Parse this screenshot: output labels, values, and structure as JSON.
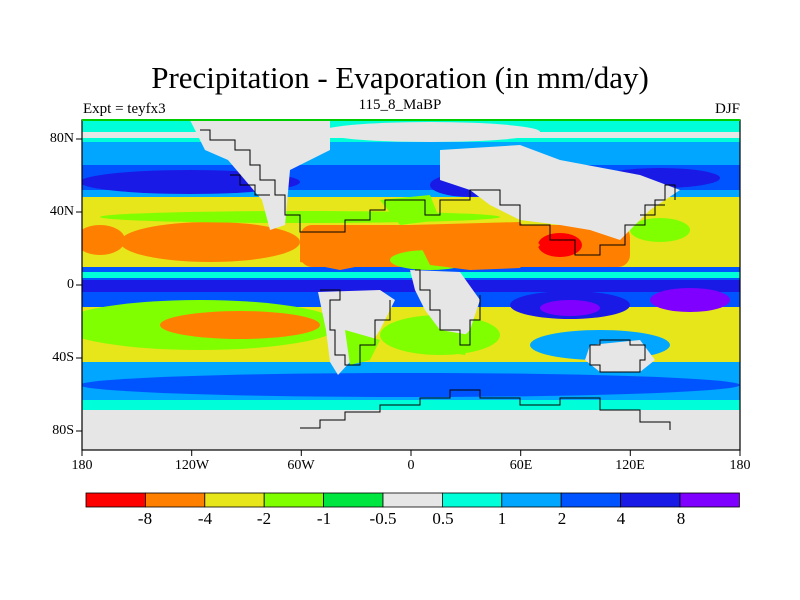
{
  "title": "Precipitation - Evaporation (in mm/day)",
  "subtitle_left": "Expt = teyfx3",
  "subtitle_center": "115_8_MaBP",
  "subtitle_right": "DJF",
  "axes": {
    "x_ticks": [
      "180",
      "120W",
      "60W",
      "0",
      "60E",
      "120E",
      "180"
    ],
    "y_ticks": [
      "80N",
      "40N",
      "0",
      "40S",
      "80S"
    ]
  },
  "colorbar": {
    "labels": [
      "-8",
      "-4",
      "-2",
      "-1",
      "-0.5",
      "0.5",
      "1",
      "2",
      "4",
      "8"
    ],
    "colors": [
      "#ff0000",
      "#ff8000",
      "#e6e61a",
      "#80ff00",
      "#00e640",
      "#e6e6e6",
      "#00ffd9",
      "#00a6ff",
      "#0054ff",
      "#1a1ae6",
      "#8000ff"
    ]
  },
  "chart_data": {
    "type": "heatmap",
    "title": "Precipitation - Evaporation (in mm/day)",
    "xlim": [
      -180,
      180
    ],
    "ylim": [
      -90,
      90
    ],
    "x_ticks": [
      "180",
      "120W",
      "60W",
      "0",
      "60E",
      "120E",
      "180"
    ],
    "y_ticks": [
      "80N",
      "40N",
      "0",
      "40S",
      "80S"
    ],
    "levels": [
      -8,
      -4,
      -2,
      -1,
      -0.5,
      0.5,
      1,
      2,
      4,
      8
    ],
    "zonal_bands": [
      {
        "lat_range": [
          75,
          90
        ],
        "value_class": "0.5 to 2"
      },
      {
        "lat_range": [
          45,
          75
        ],
        "value_class": "2 to 8"
      },
      {
        "lat_range": [
          10,
          40
        ],
        "value_class": "-4 to -2 over oceans, -8 to -4 over land"
      },
      {
        "lat_range": [
          -5,
          10
        ],
        "value_class": "2 to >8"
      },
      {
        "lat_range": [
          -35,
          -5
        ],
        "value_class": "-4 to -1"
      },
      {
        "lat_range": [
          -60,
          -35
        ],
        "value_class": "1 to 4"
      },
      {
        "lat_range": [
          -90,
          -60
        ],
        "value_class": "-0.5 to 1"
      }
    ]
  }
}
